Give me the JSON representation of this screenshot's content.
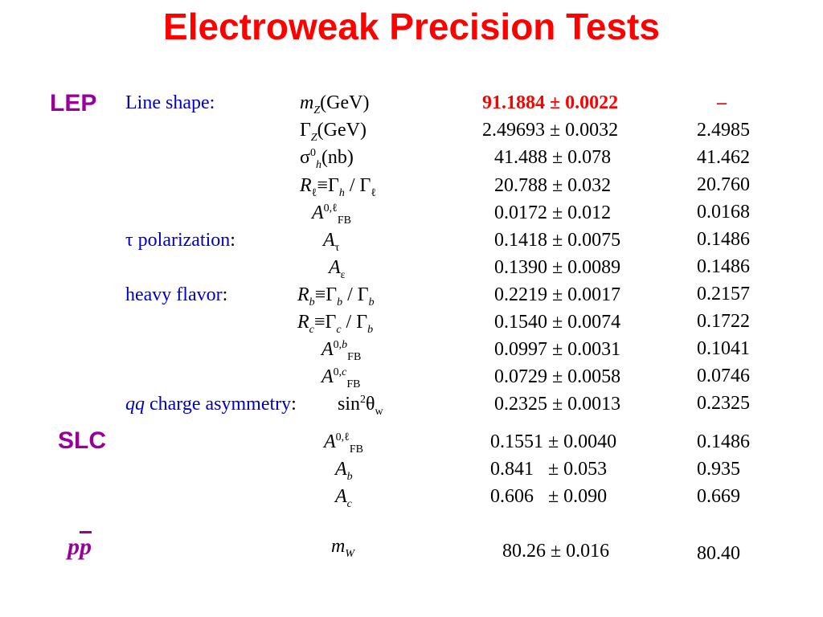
{
  "title": "Electroweak Precision Tests",
  "sections": {
    "lep": "LEP",
    "slc": "SLC",
    "ppbar_p1": "p",
    "ppbar_p2": "p"
  },
  "groups": {
    "line_shape": "Line shape:",
    "tau_pol": "τ polarization",
    "heavy_flavor": "heavy flavor",
    "qq": "qq",
    "qq_rest": " charge asymmetry",
    "colon": ":"
  },
  "sym": {
    "m": "m",
    "Z": "Z",
    "GeV": "(GeV)",
    "Gamma": "Γ",
    "sigma": "σ",
    "zero": "0",
    "h": "h",
    "nb": "(nb)",
    "R": "R",
    "ell": "ℓ",
    "equiv": "≡",
    "slash": " / ",
    "A": "A",
    "A0ell": "0,ℓ",
    "FB": "FB",
    "tau": "τ",
    "eps": "ε",
    "b": "b",
    "c": "c",
    "A0b": "0,",
    "A0c": "0,",
    "sin": "sin",
    "two": "2",
    "theta": "θ",
    "w": "w",
    "W": "W"
  },
  "rows": [
    {
      "measured": "91.1884 ± 0.0022",
      "fit": "–"
    },
    {
      "measured": "2.49693 ± 0.0032",
      "fit": "2.4985"
    },
    {
      "measured": "41.488 ± 0.078",
      "fit": "41.462"
    },
    {
      "measured": "20.788 ± 0.032",
      "fit": "20.760"
    },
    {
      "measured": "0.0172 ± 0.012",
      "fit": "0.0168"
    },
    {
      "measured": "0.1418 ± 0.0075",
      "fit": "0.1486"
    },
    {
      "measured": "0.1390 ± 0.0089",
      "fit": "0.1486"
    },
    {
      "measured": "0.2219 ± 0.0017",
      "fit": "0.2157"
    },
    {
      "measured": "0.1540 ± 0.0074",
      "fit": "0.1722"
    },
    {
      "measured": "0.0997 ± 0.0031",
      "fit": "0.1041"
    },
    {
      "measured": "0.0729 ± 0.0058",
      "fit": "0.0746"
    },
    {
      "measured": "0.2325 ± 0.0013",
      "fit": "0.2325"
    },
    {
      "measured": "0.1551 ± 0.0040",
      "fit": "0.1486"
    },
    {
      "measured": "0.841   ± 0.053",
      "fit": "0.935"
    },
    {
      "measured": "0.606   ± 0.090",
      "fit": "0.669"
    },
    {
      "measured": "80.26 ± 0.016",
      "fit": "80.40"
    }
  ]
}
